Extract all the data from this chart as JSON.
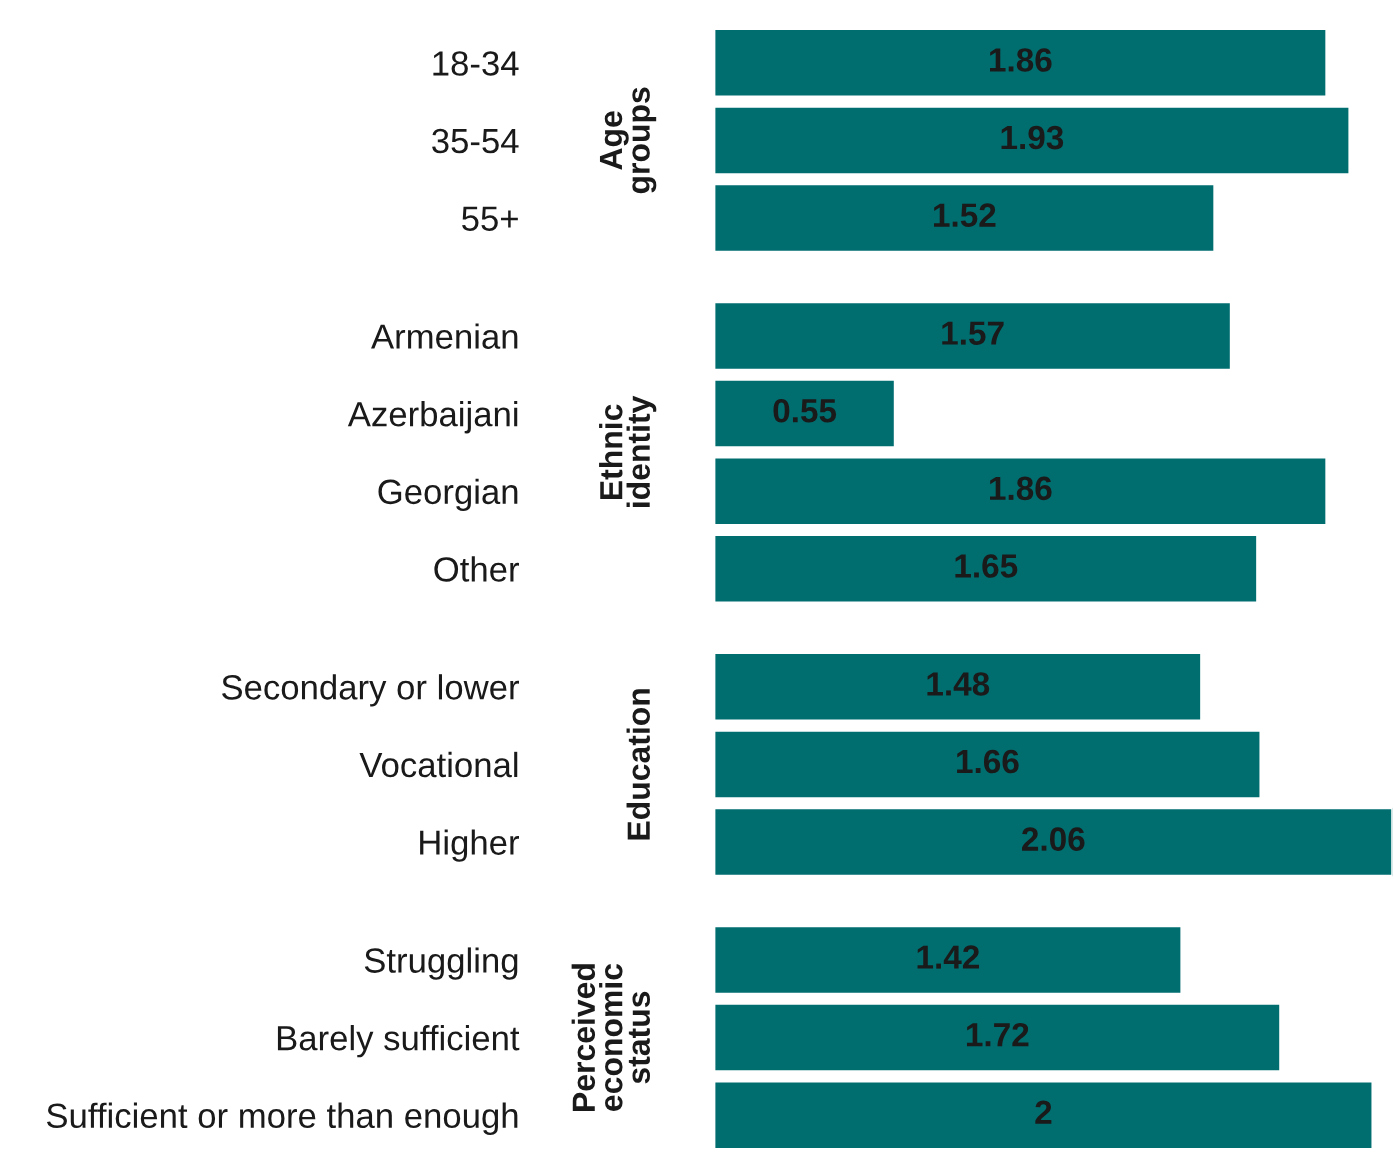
{
  "chart_data": [
    {
      "type": "bar",
      "orientation": "horizontal",
      "ylabel": "Age\ngroups",
      "categories": [
        "18-34",
        "35-54",
        "55+"
      ],
      "values": [
        1.86,
        1.93,
        1.52
      ],
      "color": "#006d6f",
      "data_labels": true,
      "tick_labels": "y",
      "grid": false,
      "legend": false
    },
    {
      "type": "bar",
      "orientation": "horizontal",
      "ylabel": "Ethnic\nidentity",
      "categories": [
        "Armenian",
        "Azerbaijani",
        "Georgian",
        "Other"
      ],
      "values": [
        1.57,
        0.55,
        1.86,
        1.65
      ],
      "color": "#006d6f",
      "data_labels": true,
      "tick_labels": "y",
      "grid": false,
      "legend": false
    },
    {
      "type": "bar",
      "orientation": "horizontal",
      "ylabel": "Education",
      "categories": [
        "Secondary or lower",
        "Vocational",
        "Higher"
      ],
      "values": [
        1.48,
        1.66,
        2.06
      ],
      "color": "#006d6f",
      "data_labels": true,
      "tick_labels": "y",
      "grid": false,
      "legend": false
    },
    {
      "type": "bar",
      "orientation": "horizontal",
      "ylabel": "Perceived\neconomic\nstatus",
      "categories": [
        "Struggling",
        "Barely sufficient",
        "Sufficient or more than enough"
      ],
      "values": [
        1.42,
        1.72,
        2
      ],
      "color": "#006d6f",
      "data_labels": true,
      "tick_labels": "y",
      "grid": false,
      "legend": false
    }
  ]
}
